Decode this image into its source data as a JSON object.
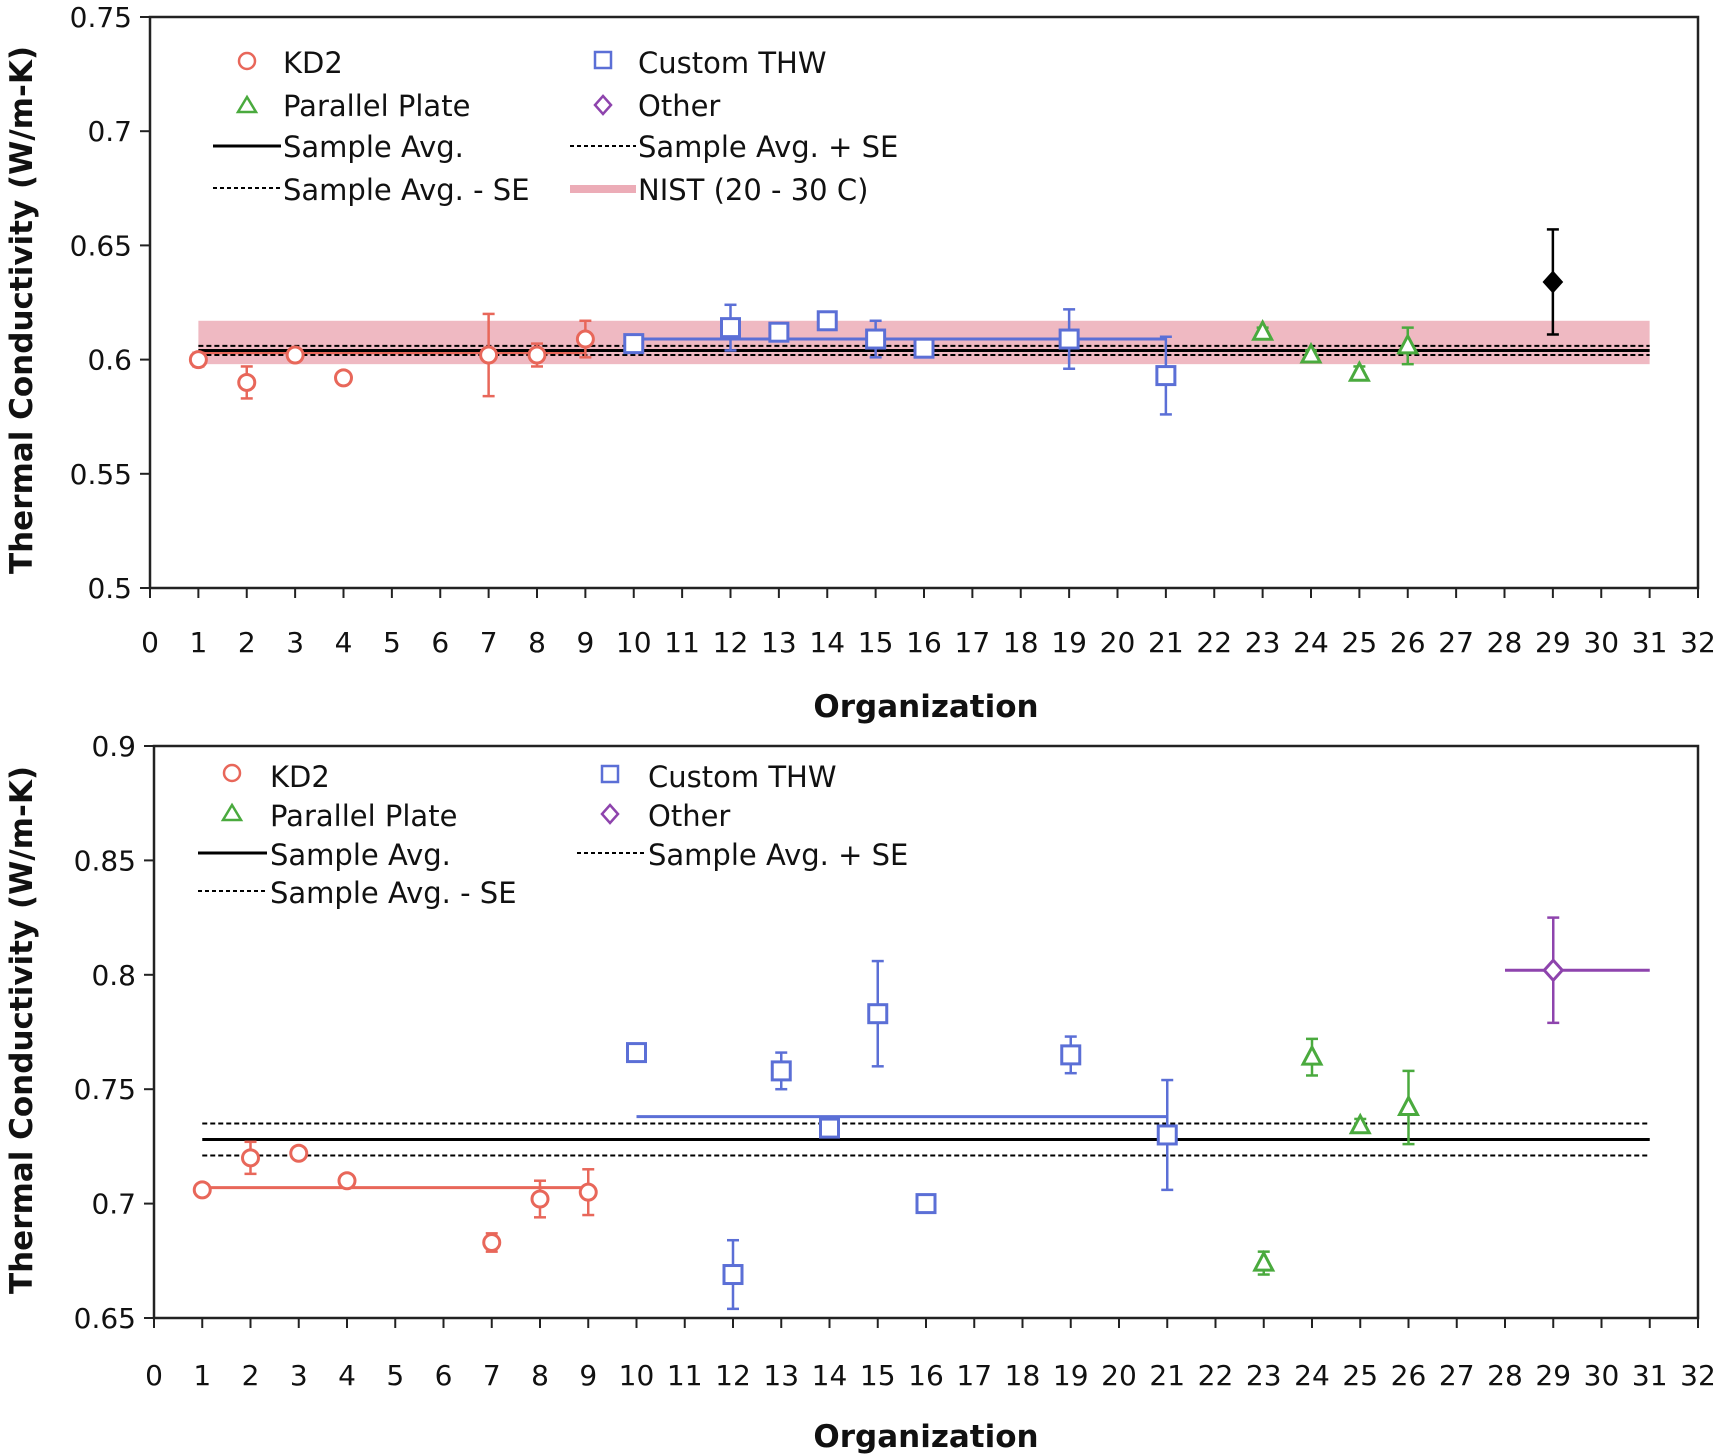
{
  "chart_data": [
    {
      "type": "scatter",
      "title": "",
      "xlabel": "Organization",
      "ylabel": "Thermal Conductivity (W/m-K)",
      "xlim": [
        0,
        32
      ],
      "ylim": [
        0.5,
        0.75
      ],
      "xticks": [
        0,
        1,
        2,
        3,
        4,
        5,
        6,
        7,
        8,
        9,
        10,
        11,
        12,
        13,
        14,
        15,
        16,
        17,
        18,
        19,
        20,
        21,
        22,
        23,
        24,
        25,
        26,
        27,
        28,
        29,
        30,
        31,
        32
      ],
      "yticks": [
        "0.5",
        "0.55",
        "0.6",
        "0.65",
        "0.7",
        "0.75"
      ],
      "grid": false,
      "legend_position": "top-left",
      "legend": [
        {
          "label": "KD2",
          "marker": "circle",
          "color": "#e8675a"
        },
        {
          "label": "Custom THW",
          "marker": "square",
          "color": "#5b6fd6"
        },
        {
          "label": "Parallel Plate",
          "marker": "triangle",
          "color": "#4aaa3e"
        },
        {
          "label": "Other",
          "marker": "diamond",
          "color": "#8e44ad"
        },
        {
          "label": "Sample Avg.",
          "marker": "line-solid",
          "color": "#000000"
        },
        {
          "label": "Sample Avg. + SE",
          "marker": "line-dashed",
          "color": "#000000"
        },
        {
          "label": "Sample Avg. - SE",
          "marker": "line-dashed",
          "color": "#000000"
        },
        {
          "label": "NIST (20 - 30 C)",
          "marker": "band",
          "color": "#e58a9a"
        }
      ],
      "series": [
        {
          "name": "KD2",
          "marker": "circle",
          "color": "#e8675a",
          "x": [
            1,
            2,
            3,
            4,
            7,
            8,
            9
          ],
          "y": [
            0.6,
            0.59,
            0.602,
            0.592,
            0.602,
            0.602,
            0.609
          ],
          "err": [
            0.003,
            0.007,
            0.002,
            0.0015,
            0.018,
            0.005,
            0.008
          ]
        },
        {
          "name": "Custom THW",
          "marker": "square",
          "color": "#5b6fd6",
          "x": [
            10,
            12,
            13,
            14,
            15,
            16,
            19,
            21
          ],
          "y": [
            0.607,
            0.614,
            0.612,
            0.617,
            0.609,
            0.605,
            0.609,
            0.593
          ],
          "err": [
            0.002,
            0.01,
            0.003,
            0.002,
            0.008,
            0.002,
            0.013,
            0.017
          ]
        },
        {
          "name": "Parallel Plate",
          "marker": "triangle",
          "color": "#4aaa3e",
          "x": [
            23,
            24,
            25,
            26
          ],
          "y": [
            0.612,
            0.602,
            0.594,
            0.606
          ],
          "err": [
            0.002,
            0.002,
            0.003,
            0.008
          ]
        },
        {
          "name": "Other",
          "marker": "diamond-filled",
          "color": "#000000",
          "x": [
            29
          ],
          "y": [
            0.634
          ],
          "err": [
            0.023
          ]
        }
      ],
      "lines": {
        "sample_avg": 0.604,
        "sample_avg_plus_se": 0.606,
        "sample_avg_minus_se": 0.602,
        "x_range": [
          1,
          31
        ],
        "nist_band": [
          0.598,
          0.617
        ],
        "group_avg": [
          {
            "color": "#e8675a",
            "x": [
              1,
              9
            ],
            "y": 0.603
          },
          {
            "color": "#5b6fd6",
            "x": [
              10,
              21
            ],
            "y": 0.609
          },
          {
            "color": "#4aaa3e",
            "x": [
              22,
              27
            ],
            "y": 0.604
          }
        ]
      }
    },
    {
      "type": "scatter",
      "title": "",
      "xlabel": "Organization",
      "ylabel": "Thermal Conductivity (W/m-K)",
      "xlim": [
        0,
        32
      ],
      "ylim": [
        0.65,
        0.9
      ],
      "xticks": [
        0,
        1,
        2,
        3,
        4,
        5,
        6,
        7,
        8,
        9,
        10,
        11,
        12,
        13,
        14,
        15,
        16,
        17,
        18,
        19,
        20,
        21,
        22,
        23,
        24,
        25,
        26,
        27,
        28,
        29,
        30,
        31,
        32
      ],
      "yticks": [
        "0.65",
        "0.7",
        "0.75",
        "0.8",
        "0.85",
        "0.9"
      ],
      "grid": false,
      "legend_position": "top-left",
      "legend": [
        {
          "label": "KD2",
          "marker": "circle",
          "color": "#e8675a"
        },
        {
          "label": "Custom THW",
          "marker": "square",
          "color": "#5b6fd6"
        },
        {
          "label": "Parallel Plate",
          "marker": "triangle",
          "color": "#4aaa3e"
        },
        {
          "label": "Other",
          "marker": "diamond",
          "color": "#8e44ad"
        },
        {
          "label": "Sample Avg.",
          "marker": "line-solid",
          "color": "#000000"
        },
        {
          "label": "Sample Avg. + SE",
          "marker": "line-dashed",
          "color": "#000000"
        },
        {
          "label": "Sample Avg. - SE",
          "marker": "line-dashed",
          "color": "#000000"
        }
      ],
      "series": [
        {
          "name": "KD2",
          "marker": "circle",
          "color": "#e8675a",
          "x": [
            1,
            2,
            3,
            4,
            7,
            8,
            9
          ],
          "y": [
            0.706,
            0.72,
            0.722,
            0.71,
            0.683,
            0.702,
            0.705
          ],
          "err": [
            0.002,
            0.007,
            0.002,
            0.002,
            0.004,
            0.008,
            0.01
          ]
        },
        {
          "name": "Custom THW",
          "marker": "square",
          "color": "#5b6fd6",
          "x": [
            10,
            12,
            13,
            14,
            15,
            16,
            19,
            21
          ],
          "y": [
            0.766,
            0.669,
            0.758,
            0.733,
            0.783,
            0.7,
            0.765,
            0.73
          ],
          "err": [
            0.002,
            0.015,
            0.008,
            0.002,
            0.023,
            0.002,
            0.008,
            0.024
          ]
        },
        {
          "name": "Parallel Plate",
          "marker": "triangle",
          "color": "#4aaa3e",
          "x": [
            23,
            24,
            25,
            26
          ],
          "y": [
            0.674,
            0.764,
            0.734,
            0.742
          ],
          "err": [
            0.005,
            0.008,
            0.003,
            0.016
          ]
        },
        {
          "name": "Other",
          "marker": "diamond",
          "color": "#8e44ad",
          "x": [
            29
          ],
          "y": [
            0.802
          ],
          "err": [
            0.023
          ]
        }
      ],
      "lines": {
        "sample_avg": 0.728,
        "sample_avg_plus_se": 0.735,
        "sample_avg_minus_se": 0.721,
        "x_range": [
          1,
          31
        ],
        "group_avg": [
          {
            "color": "#e8675a",
            "x": [
              1,
              9
            ],
            "y": 0.707
          },
          {
            "color": "#5b6fd6",
            "x": [
              10,
              21
            ],
            "y": 0.738
          },
          {
            "color": "#4aaa3e",
            "x": [
              22,
              27
            ],
            "y": 0.728
          },
          {
            "color": "#8e44ad",
            "x": [
              28,
              31
            ],
            "y": 0.802
          }
        ]
      }
    }
  ]
}
